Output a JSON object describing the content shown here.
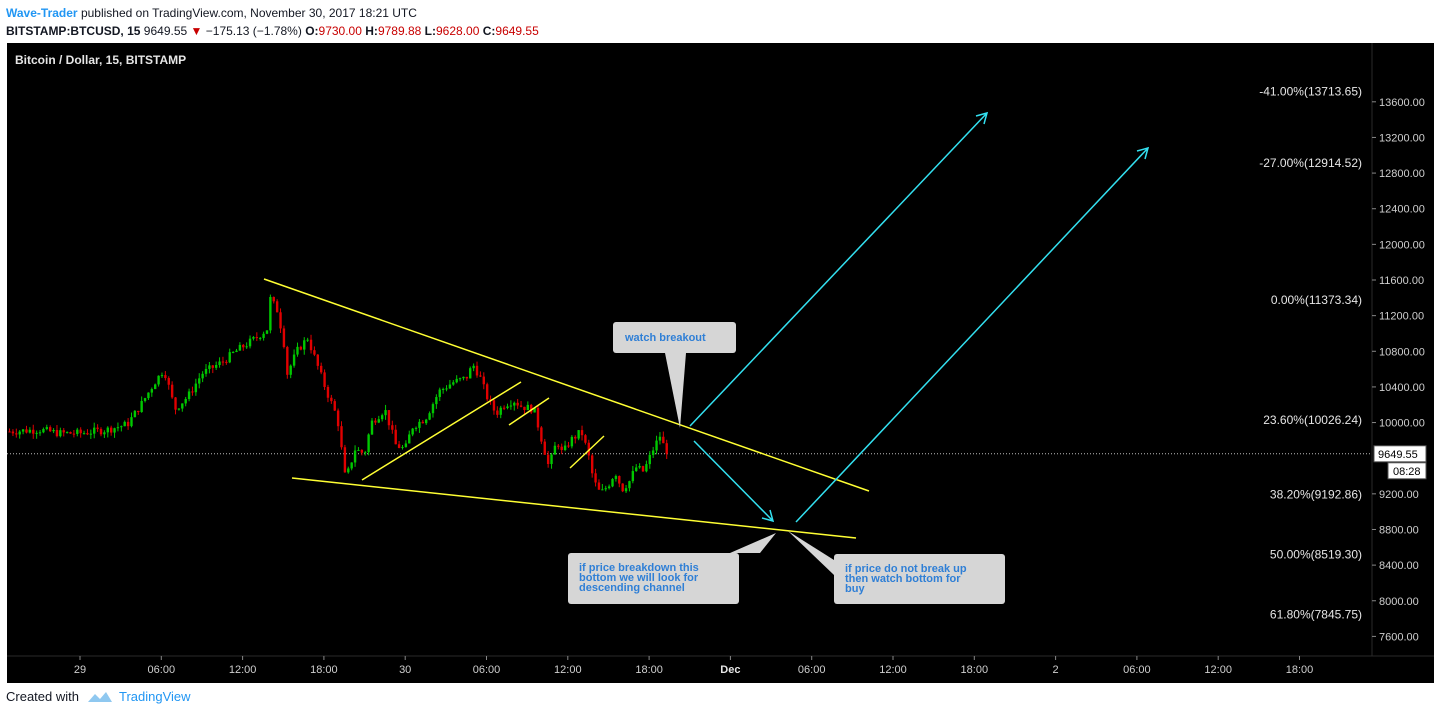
{
  "header": {
    "author": "Wave-Trader",
    "published": "published on TradingView.com, November 30, 2017 18:21 UTC",
    "symbol": "BITSTAMP:BTCUSD, 15",
    "last": "9649.55",
    "change": "−175.13 (−1.78%)",
    "o_label": "O:",
    "o": "9730.00",
    "h_label": "H:",
    "h": "9789.88",
    "l_label": "L:",
    "l": "9628.00",
    "c_label": "C:",
    "c": "9649.55"
  },
  "chart_title": "Bitcoin / Dollar, 15, BITSTAMP",
  "colors": {
    "background": "#000000",
    "up": "#00c800",
    "down": "#e00000",
    "trendline": "#ffff33",
    "arrow": "#33e0f0",
    "bubble": "#d6d6d6",
    "bubble_text": "#2f7fd6"
  },
  "annotations": {
    "watch": "watch breakout",
    "breakdown": [
      "if price breakdown this",
      "bottom we will look for",
      "descending channel"
    ],
    "bottom": [
      "if price do not break up",
      "then watch bottom for",
      "buy"
    ]
  },
  "price_label": "9649.55",
  "countdown": "08:28",
  "footer": {
    "created_with": "Created with",
    "brand": "TradingView"
  },
  "chart_data": {
    "type": "candlestick",
    "title": "Bitcoin / Dollar, 15, BITSTAMP",
    "y_ticks": [
      13600,
      13200,
      12800,
      12400,
      12000,
      11600,
      11200,
      10800,
      10400,
      10000,
      9200,
      8800,
      8400,
      8000,
      7600
    ],
    "y_range": [
      7380,
      14260
    ],
    "x_ticks": [
      "29",
      "06:00",
      "12:00",
      "18:00",
      "30",
      "06:00",
      "12:00",
      "18:00",
      "Dec",
      "06:00",
      "12:00",
      "18:00",
      "2",
      "06:00",
      "12:00",
      "18:00"
    ],
    "x_tick_hours": [
      0,
      6,
      12,
      18,
      24,
      30,
      36,
      42,
      48,
      54,
      60,
      66,
      72,
      78,
      84,
      90
    ],
    "fib_levels": [
      {
        "label": "-41.00%(13713.65)",
        "price": 13713.65
      },
      {
        "label": "-27.00%(12914.52)",
        "price": 12914.52
      },
      {
        "label": "0.00%(11373.34)",
        "price": 11373.34
      },
      {
        "label": "23.60%(10026.24)",
        "price": 10026.24
      },
      {
        "label": "38.20%(9192.86)",
        "price": 9192.86
      },
      {
        "label": "50.00%(8519.30)",
        "price": 8519.3
      },
      {
        "label": "61.80%(7845.75)",
        "price": 7845.75
      }
    ],
    "last_price": 9649.55,
    "price_path": [
      [
        -5.2,
        9900
      ],
      [
        -3.0,
        9920
      ],
      [
        -1.5,
        9880
      ],
      [
        0,
        9880
      ],
      [
        2,
        9920
      ],
      [
        3.5,
        9980
      ],
      [
        4.5,
        10200
      ],
      [
        5.5,
        10450
      ],
      [
        6.2,
        10600
      ],
      [
        7.0,
        10150
      ],
      [
        8.0,
        10300
      ],
      [
        9.0,
        10550
      ],
      [
        10.5,
        10680
      ],
      [
        11.5,
        10800
      ],
      [
        12.0,
        10850
      ],
      [
        13.0,
        10950
      ],
      [
        13.8,
        11050
      ],
      [
        14.0,
        11400
      ],
      [
        14.6,
        11250
      ],
      [
        15.1,
        10850
      ],
      [
        15.3,
        10550
      ],
      [
        16.0,
        10800
      ],
      [
        16.8,
        10950
      ],
      [
        17.5,
        10650
      ],
      [
        18.2,
        10350
      ],
      [
        19.0,
        10050
      ],
      [
        19.6,
        9350
      ],
      [
        20.3,
        9700
      ],
      [
        21.0,
        9650
      ],
      [
        21.5,
        10000
      ],
      [
        22.5,
        10150
      ],
      [
        23.3,
        9750
      ],
      [
        24.0,
        9700
      ],
      [
        24.5,
        9950
      ],
      [
        25.5,
        10050
      ],
      [
        26.5,
        10350
      ],
      [
        27.5,
        10450
      ],
      [
        28.5,
        10500
      ],
      [
        29.0,
        10650
      ],
      [
        29.5,
        10520
      ],
      [
        30.0,
        10300
      ],
      [
        30.7,
        10100
      ],
      [
        31.3,
        10200
      ],
      [
        32.0,
        10250
      ],
      [
        32.6,
        10180
      ],
      [
        33.5,
        10150
      ],
      [
        34.0,
        9850
      ],
      [
        34.6,
        9500
      ],
      [
        35.2,
        9800
      ],
      [
        35.6,
        9650
      ],
      [
        36.2,
        9800
      ],
      [
        37.0,
        9900
      ],
      [
        37.5,
        9650
      ],
      [
        37.9,
        9350
      ],
      [
        38.4,
        9200
      ],
      [
        39.0,
        9300
      ],
      [
        39.5,
        9450
      ],
      [
        40.0,
        9250
      ],
      [
        40.6,
        9350
      ],
      [
        41.0,
        9500
      ],
      [
        41.6,
        9450
      ],
      [
        42.3,
        9700
      ],
      [
        42.8,
        9850
      ],
      [
        43.3,
        9650
      ]
    ]
  }
}
